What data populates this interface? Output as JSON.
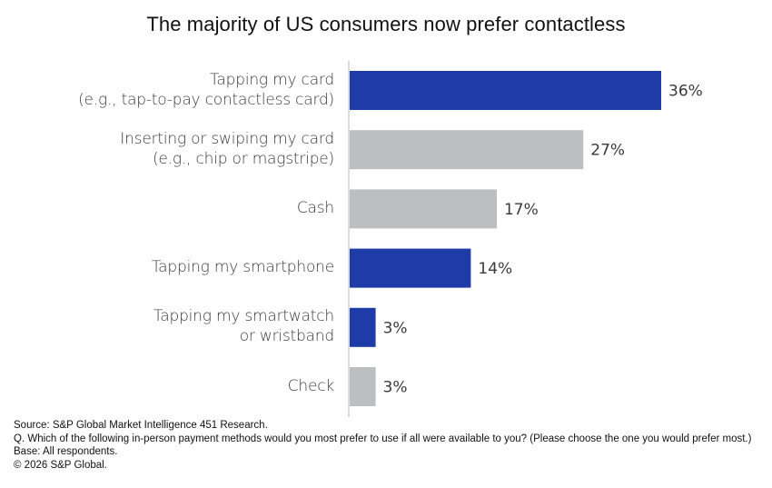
{
  "chart_data": {
    "type": "bar",
    "orientation": "horizontal",
    "title": "The majority of US consumers now prefer contactless",
    "xlabel": "",
    "ylabel": "",
    "xlim": [
      0,
      36
    ],
    "grid": false,
    "categories": [
      [
        "Tapping my card",
        "(e.g., tap-to-pay contactless card)"
      ],
      [
        "Inserting or swiping my card",
        "(e.g., chip or magstripe)"
      ],
      [
        "Cash"
      ],
      [
        "Tapping my smartphone"
      ],
      [
        "Tapping my smartwatch",
        "or wristband"
      ],
      [
        "Check"
      ]
    ],
    "values": [
      36,
      27,
      17,
      14,
      3,
      3
    ],
    "value_labels": [
      "36%",
      "27%",
      "17%",
      "14%",
      "3%",
      "3%"
    ],
    "bar_colors": [
      "#1e3ba8",
      "#bdbebf",
      "#bdbebf",
      "#1e3ba8",
      "#1e3ba8",
      "#bdbebf"
    ],
    "bar_groups": [
      "contactless",
      "non-contactless",
      "non-contactless",
      "contactless",
      "contactless",
      "non-contactless"
    ]
  },
  "footer": {
    "source": "Source: S&P Global Market Intelligence 451 Research.",
    "question": "Q. Which of the following in-person payment methods would you most prefer to use if all were available to you? (Please choose the one you would prefer most.)",
    "base": "Base: All respondents.",
    "copyright": "© 2026 S&P Global."
  },
  "colors": {
    "contactless": "#1e3ba8",
    "other": "#bdbebf",
    "axis": "#d0d0d0"
  }
}
